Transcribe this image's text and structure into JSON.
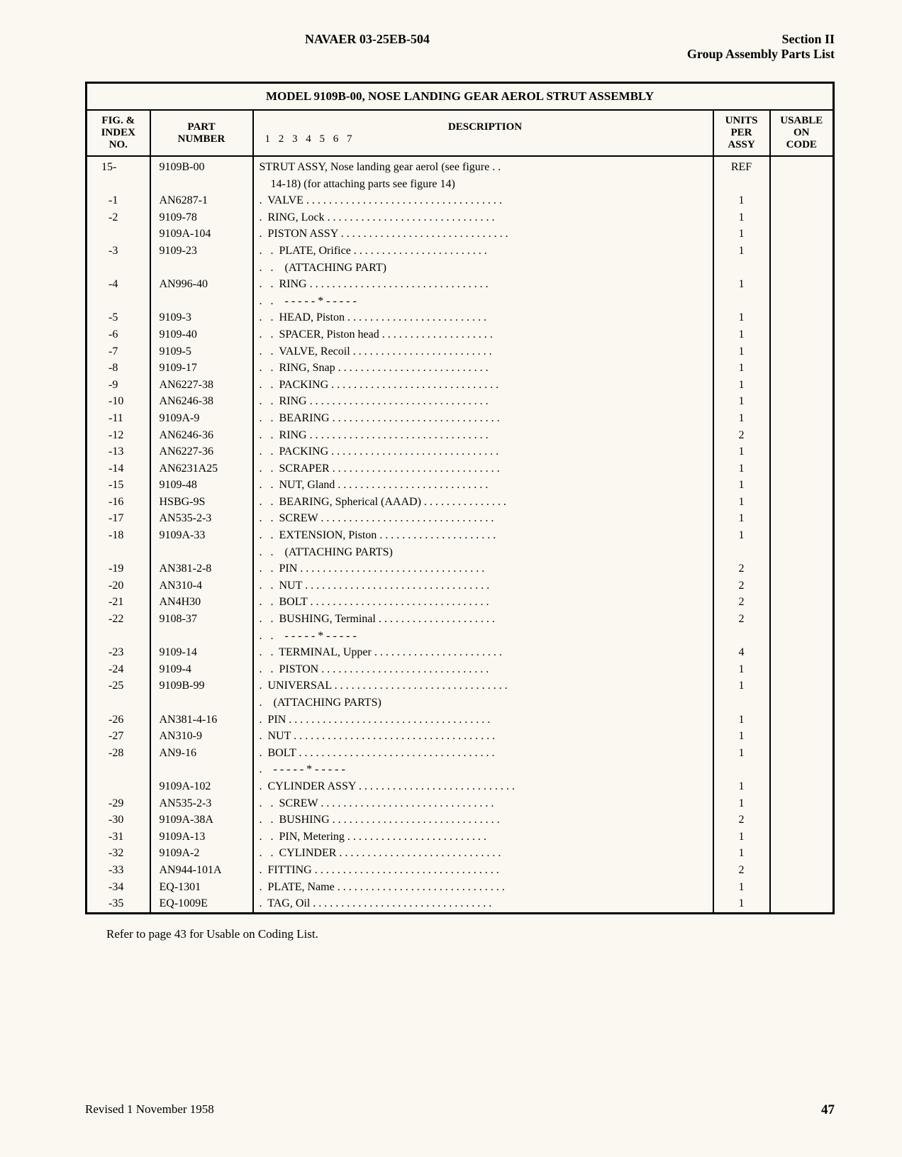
{
  "header": {
    "doc_number": "NAVAER 03-25EB-504",
    "section": "Section II",
    "section_title": "Group Assembly Parts List"
  },
  "table": {
    "title": "MODEL 9109B-00, NOSE LANDING GEAR AEROL STRUT ASSEMBLY",
    "columns": {
      "index": "FIG. &\nINDEX\nNO.",
      "part": "PART\nNUMBER",
      "desc": "DESCRIPTION",
      "desc_sub": "1 2 3 4 5 6 7",
      "units": "UNITS\nPER\nASSY",
      "usable": "USABLE\nON\nCODE"
    },
    "rows": [
      {
        "index": "15-",
        "part": "9109B-00",
        "indent": 0,
        "desc": "STRUT ASSY, Nose landing gear aerol (see figure",
        "dots": true,
        "units": "REF",
        "usable": ""
      },
      {
        "index": "",
        "part": "",
        "indent": 0,
        "desc": "    14-18) (for attaching parts see figure 14)",
        "dots": false,
        "units": "",
        "usable": ""
      },
      {
        "index": "-1",
        "part": "AN6287-1",
        "indent": 1,
        "desc": "VALVE",
        "dots": true,
        "units": "1",
        "usable": ""
      },
      {
        "index": "-2",
        "part": "9109-78",
        "indent": 1,
        "desc": "RING, Lock",
        "dots": true,
        "units": "1",
        "usable": ""
      },
      {
        "index": "",
        "part": "9109A-104",
        "indent": 1,
        "desc": "PISTON ASSY",
        "dots": true,
        "units": "1",
        "usable": ""
      },
      {
        "index": "-3",
        "part": "9109-23",
        "indent": 2,
        "desc": "PLATE, Orifice",
        "dots": true,
        "units": "1",
        "usable": ""
      },
      {
        "index": "",
        "part": "",
        "indent": 2,
        "desc": "  (ATTACHING PART)",
        "dots": false,
        "units": "",
        "usable": ""
      },
      {
        "index": "-4",
        "part": "AN996-40",
        "indent": 2,
        "desc": "RING",
        "dots": true,
        "units": "1",
        "usable": ""
      },
      {
        "index": "",
        "part": "",
        "indent": 2,
        "desc": "  - - - - - * - - - - -",
        "dots": false,
        "units": "",
        "usable": ""
      },
      {
        "index": "-5",
        "part": "9109-3",
        "indent": 2,
        "desc": "HEAD, Piston",
        "dots": true,
        "units": "1",
        "usable": ""
      },
      {
        "index": "-6",
        "part": "9109-40",
        "indent": 2,
        "desc": "SPACER, Piston head",
        "dots": true,
        "units": "1",
        "usable": ""
      },
      {
        "index": "-7",
        "part": "9109-5",
        "indent": 2,
        "desc": "VALVE, Recoil",
        "dots": true,
        "units": "1",
        "usable": ""
      },
      {
        "index": "-8",
        "part": "9109-17",
        "indent": 2,
        "desc": "RING, Snap",
        "dots": true,
        "units": "1",
        "usable": ""
      },
      {
        "index": "-9",
        "part": "AN6227-38",
        "indent": 2,
        "desc": "PACKING",
        "dots": true,
        "units": "1",
        "usable": ""
      },
      {
        "index": "-10",
        "part": "AN6246-38",
        "indent": 2,
        "desc": "RING",
        "dots": true,
        "units": "1",
        "usable": ""
      },
      {
        "index": "-11",
        "part": "9109A-9",
        "indent": 2,
        "desc": "BEARING",
        "dots": true,
        "units": "1",
        "usable": ""
      },
      {
        "index": "-12",
        "part": "AN6246-36",
        "indent": 2,
        "desc": "RING",
        "dots": true,
        "units": "2",
        "usable": ""
      },
      {
        "index": "-13",
        "part": "AN6227-36",
        "indent": 2,
        "desc": "PACKING",
        "dots": true,
        "units": "1",
        "usable": ""
      },
      {
        "index": "-14",
        "part": "AN6231A25",
        "indent": 2,
        "desc": "SCRAPER",
        "dots": true,
        "units": "1",
        "usable": ""
      },
      {
        "index": "-15",
        "part": "9109-48",
        "indent": 2,
        "desc": "NUT, Gland",
        "dots": true,
        "units": "1",
        "usable": ""
      },
      {
        "index": "-16",
        "part": "HSBG-9S",
        "indent": 2,
        "desc": "BEARING, Spherical (AAAD)",
        "dots": true,
        "units": "1",
        "usable": ""
      },
      {
        "index": "-17",
        "part": "AN535-2-3",
        "indent": 2,
        "desc": "SCREW",
        "dots": true,
        "units": "1",
        "usable": ""
      },
      {
        "index": "-18",
        "part": "9109A-33",
        "indent": 2,
        "desc": "EXTENSION, Piston",
        "dots": true,
        "units": "1",
        "usable": ""
      },
      {
        "index": "",
        "part": "",
        "indent": 2,
        "desc": "  (ATTACHING PARTS)",
        "dots": false,
        "units": "",
        "usable": ""
      },
      {
        "index": "-19",
        "part": "AN381-2-8",
        "indent": 2,
        "desc": "PIN",
        "dots": true,
        "units": "2",
        "usable": ""
      },
      {
        "index": "-20",
        "part": "AN310-4",
        "indent": 2,
        "desc": "NUT",
        "dots": true,
        "units": "2",
        "usable": ""
      },
      {
        "index": "-21",
        "part": "AN4H30",
        "indent": 2,
        "desc": "BOLT",
        "dots": true,
        "units": "2",
        "usable": ""
      },
      {
        "index": "-22",
        "part": "9108-37",
        "indent": 2,
        "desc": "BUSHING, Terminal",
        "dots": true,
        "units": "2",
        "usable": ""
      },
      {
        "index": "",
        "part": "",
        "indent": 2,
        "desc": "  - - - - - * - - - - -",
        "dots": false,
        "units": "",
        "usable": ""
      },
      {
        "index": "-23",
        "part": "9109-14",
        "indent": 2,
        "desc": "TERMINAL, Upper",
        "dots": true,
        "units": "4",
        "usable": ""
      },
      {
        "index": "-24",
        "part": "9109-4",
        "indent": 2,
        "desc": "PISTON",
        "dots": true,
        "units": "1",
        "usable": ""
      },
      {
        "index": "-25",
        "part": "9109B-99",
        "indent": 1,
        "desc": "UNIVERSAL",
        "dots": true,
        "units": "1",
        "usable": ""
      },
      {
        "index": "",
        "part": "",
        "indent": 1,
        "desc": "  (ATTACHING PARTS)",
        "dots": false,
        "units": "",
        "usable": ""
      },
      {
        "index": "-26",
        "part": "AN381-4-16",
        "indent": 1,
        "desc": "PIN",
        "dots": true,
        "units": "1",
        "usable": ""
      },
      {
        "index": "-27",
        "part": "AN310-9",
        "indent": 1,
        "desc": "NUT",
        "dots": true,
        "units": "1",
        "usable": ""
      },
      {
        "index": "-28",
        "part": "AN9-16",
        "indent": 1,
        "desc": "BOLT",
        "dots": true,
        "units": "1",
        "usable": ""
      },
      {
        "index": "",
        "part": "",
        "indent": 1,
        "desc": "  - - - - - * - - - - -",
        "dots": false,
        "units": "",
        "usable": ""
      },
      {
        "index": "",
        "part": "9109A-102",
        "indent": 1,
        "desc": "CYLINDER ASSY",
        "dots": true,
        "units": "1",
        "usable": ""
      },
      {
        "index": "-29",
        "part": "AN535-2-3",
        "indent": 2,
        "desc": "SCREW",
        "dots": true,
        "units": "1",
        "usable": ""
      },
      {
        "index": "-30",
        "part": "9109A-38A",
        "indent": 2,
        "desc": "BUSHING",
        "dots": true,
        "units": "2",
        "usable": ""
      },
      {
        "index": "-31",
        "part": "9109A-13",
        "indent": 2,
        "desc": "PIN, Metering",
        "dots": true,
        "units": "1",
        "usable": ""
      },
      {
        "index": "-32",
        "part": "9109A-2",
        "indent": 2,
        "desc": "CYLINDER",
        "dots": true,
        "units": "1",
        "usable": ""
      },
      {
        "index": "-33",
        "part": "AN944-101A",
        "indent": 1,
        "desc": "FITTING",
        "dots": true,
        "units": "2",
        "usable": ""
      },
      {
        "index": "-34",
        "part": "EQ-1301",
        "indent": 1,
        "desc": "PLATE, Name",
        "dots": true,
        "units": "1",
        "usable": ""
      },
      {
        "index": "-35",
        "part": "EQ-1009E",
        "indent": 1,
        "desc": "TAG, Oil",
        "dots": true,
        "units": "1",
        "usable": ""
      }
    ]
  },
  "footnote": "Refer to page 43 for Usable on Coding List.",
  "footer": {
    "revision": "Revised 1 November 1958",
    "page": "47"
  }
}
